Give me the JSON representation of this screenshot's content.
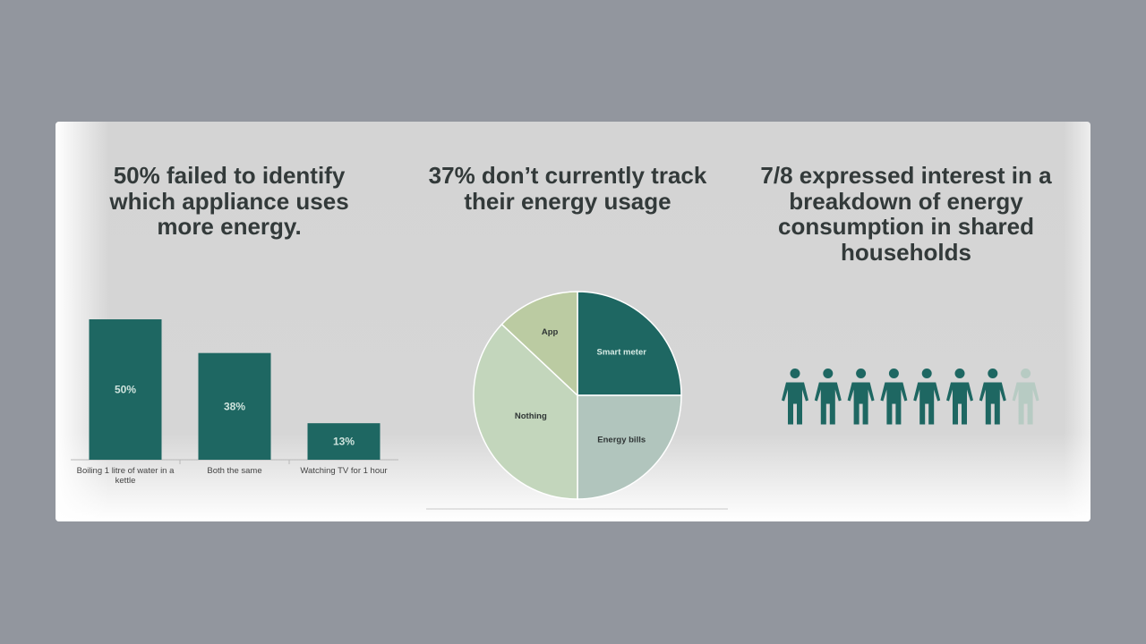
{
  "headings": {
    "left": "50% failed to identify which appliance uses more energy.",
    "middle": "37% don’t currently track their energy usage",
    "right": "7/8 expressed interest in a breakdown of energy consumption in shared households"
  },
  "colors": {
    "teal": "#1e6762",
    "pie": [
      "#1e6762",
      "#b1c5bd",
      "#c3d6bc",
      "#bbcba2"
    ],
    "person_faded": "#b7cbc3"
  },
  "chart_data": [
    {
      "type": "bar",
      "categories": [
        [
          "Boiling 1 litre of water in a",
          "kettle"
        ],
        [
          "Both the same"
        ],
        [
          "Watching TV for 1 hour"
        ]
      ],
      "values": [
        50,
        38,
        13
      ],
      "labels": [
        "50%",
        "38%",
        "13%"
      ],
      "title": "",
      "xlabel": "",
      "ylabel": "",
      "ylim": [
        0,
        50
      ]
    },
    {
      "type": "pie",
      "slices": [
        {
          "label": "Smart meter",
          "value": 25
        },
        {
          "label": "Energy bills",
          "value": 25
        },
        {
          "label": "Nothing",
          "value": 37
        },
        {
          "label": "App",
          "value": 13
        }
      ]
    },
    {
      "type": "pictogram",
      "total": 8,
      "highlighted": 7
    }
  ]
}
